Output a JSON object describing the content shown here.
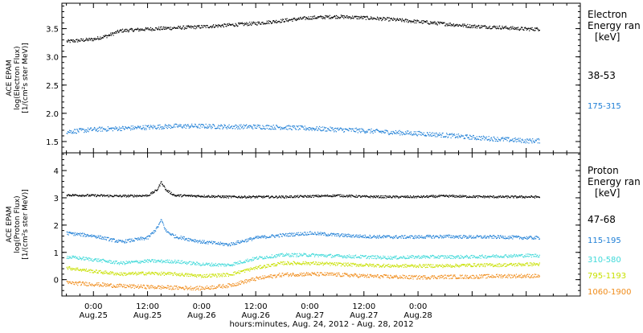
{
  "chart_data": [
    {
      "type": "scatter",
      "panel": "electron",
      "ylabel_lines": [
        "ACE EPAM",
        "log(Electron Flux)",
        "[1/(cm²s ster MeV)]"
      ],
      "ylim": [
        1.3,
        3.95
      ],
      "yticks": [
        1.5,
        2.0,
        2.5,
        3.0,
        3.5
      ],
      "ytick_labels": [
        "1.5",
        "2.0",
        "2.5",
        "3.0",
        "3.5"
      ],
      "legend_title_lines": [
        "Electron",
        "Energy ran",
        "[keV]"
      ],
      "series": [
        {
          "name": "38-53",
          "color": "#000000",
          "x": [
            -6,
            0,
            3,
            6,
            12,
            18,
            24,
            30,
            36,
            42,
            48,
            54,
            60,
            66,
            72,
            78,
            84,
            90,
            96,
            99
          ],
          "y": [
            3.28,
            3.32,
            3.38,
            3.47,
            3.5,
            3.52,
            3.54,
            3.57,
            3.6,
            3.65,
            3.7,
            3.72,
            3.7,
            3.67,
            3.63,
            3.59,
            3.55,
            3.53,
            3.5,
            3.5
          ],
          "noise": 0.03
        },
        {
          "name": "175-315",
          "color": "#1f7fd6",
          "x": [
            -6,
            0,
            6,
            12,
            18,
            24,
            30,
            36,
            42,
            48,
            54,
            60,
            66,
            72,
            78,
            84,
            90,
            96,
            99
          ],
          "y": [
            1.68,
            1.72,
            1.74,
            1.76,
            1.78,
            1.78,
            1.77,
            1.77,
            1.76,
            1.74,
            1.72,
            1.7,
            1.67,
            1.65,
            1.62,
            1.58,
            1.55,
            1.52,
            1.52
          ],
          "noise": 0.04
        }
      ]
    },
    {
      "type": "scatter",
      "panel": "proton",
      "ylabel_lines": [
        "ACE EPAM",
        "log(Proton Flux)",
        "[1/(cm²s ster MeV)]"
      ],
      "ylim": [
        -0.6,
        4.65
      ],
      "yticks": [
        0,
        1,
        2,
        3,
        4
      ],
      "ytick_labels": [
        "0",
        "1",
        "2",
        "3",
        "4"
      ],
      "legend_title_lines": [
        "Proton",
        "Energy ran",
        "[keV]"
      ],
      "series": [
        {
          "name": "47-68",
          "color": "#000000",
          "x": [
            -6,
            0,
            6,
            12,
            14,
            15,
            16,
            18,
            24,
            30,
            36,
            42,
            48,
            54,
            60,
            66,
            72,
            78,
            84,
            90,
            96,
            99
          ],
          "y": [
            3.12,
            3.1,
            3.08,
            3.1,
            3.3,
            3.6,
            3.3,
            3.1,
            3.08,
            3.05,
            3.05,
            3.05,
            3.07,
            3.1,
            3.06,
            3.05,
            3.05,
            3.08,
            3.06,
            3.05,
            3.05,
            3.05
          ],
          "noise": 0.04
        },
        {
          "name": "115-195",
          "color": "#1f7fd6",
          "x": [
            -6,
            0,
            6,
            12,
            14,
            15,
            16,
            18,
            24,
            30,
            36,
            42,
            48,
            54,
            60,
            66,
            72,
            78,
            84,
            90,
            96,
            99
          ],
          "y": [
            1.72,
            1.62,
            1.4,
            1.55,
            1.9,
            2.2,
            1.8,
            1.6,
            1.4,
            1.3,
            1.55,
            1.65,
            1.72,
            1.65,
            1.6,
            1.58,
            1.58,
            1.6,
            1.58,
            1.58,
            1.55,
            1.55
          ],
          "noise": 0.06
        },
        {
          "name": "310-580",
          "color": "#3fd9d9",
          "x": [
            -6,
            0,
            6,
            12,
            18,
            24,
            30,
            36,
            42,
            48,
            54,
            60,
            66,
            72,
            78,
            84,
            90,
            96,
            99
          ],
          "y": [
            0.85,
            0.75,
            0.62,
            0.7,
            0.68,
            0.58,
            0.55,
            0.8,
            0.92,
            0.92,
            0.88,
            0.85,
            0.82,
            0.85,
            0.85,
            0.85,
            0.88,
            0.9,
            0.9
          ],
          "noise": 0.06
        },
        {
          "name": "795-1193",
          "color": "#c8e000",
          "x": [
            -6,
            0,
            6,
            12,
            18,
            24,
            30,
            36,
            42,
            48,
            54,
            60,
            66,
            72,
            78,
            84,
            90,
            96,
            99
          ],
          "y": [
            0.45,
            0.32,
            0.22,
            0.25,
            0.22,
            0.15,
            0.2,
            0.45,
            0.62,
            0.62,
            0.58,
            0.55,
            0.52,
            0.52,
            0.52,
            0.55,
            0.55,
            0.58,
            0.58
          ],
          "noise": 0.06
        },
        {
          "name": "1060-1900",
          "color": "#f08c1a",
          "x": [
            -6,
            0,
            6,
            12,
            18,
            24,
            30,
            36,
            42,
            48,
            54,
            60,
            66,
            72,
            78,
            84,
            90,
            96,
            99
          ],
          "y": [
            -0.1,
            -0.15,
            -0.22,
            -0.25,
            -0.28,
            -0.3,
            -0.2,
            0.05,
            0.2,
            0.22,
            0.2,
            0.15,
            0.12,
            0.1,
            0.12,
            0.12,
            0.15,
            0.15,
            0.15
          ],
          "noise": 0.07
        }
      ]
    }
  ],
  "x_axis": {
    "xlim": [
      -7,
      108
    ],
    "ticks": [
      0,
      12,
      24,
      36,
      48,
      60,
      72,
      84,
      96
    ],
    "tick_labels_time": [
      "0:00",
      "12:00",
      "0:00",
      "12:00",
      "0:00",
      "12:00",
      "0:00",
      "12:00",
      "0:00"
    ],
    "tick_labels_date": [
      "Aug.25",
      "Aug.25",
      "Aug.26",
      "Aug.26",
      "Aug.27",
      "Aug.27",
      "Aug.28",
      "",
      ""
    ],
    "xlabel": "hours:minutes, Aug. 24, 2012 - Aug. 28, 2012"
  },
  "display_ticks": {
    "time": [
      "0:00",
      "12:00",
      "0:00",
      "12:00",
      "0:00",
      "12:00",
      "0:00"
    ],
    "date": [
      "Aug.25",
      "Aug.25",
      "Aug.26",
      "Aug.26",
      "Aug.27",
      "Aug.27",
      "Aug.28"
    ],
    "hours": [
      0,
      12,
      24,
      36,
      48,
      60,
      72
    ]
  }
}
